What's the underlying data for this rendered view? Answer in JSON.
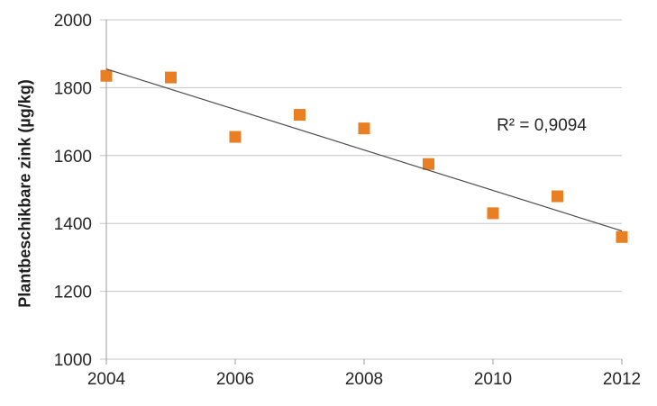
{
  "chart_data": {
    "type": "scatter",
    "title": "",
    "xlabel": "",
    "ylabel": "Plantbeschikbare zink (µg/kg)",
    "x": [
      2004,
      2005,
      2006,
      2007,
      2008,
      2009,
      2010,
      2011,
      2012
    ],
    "values": [
      1835,
      1830,
      1655,
      1720,
      1680,
      1575,
      1430,
      1480,
      1360
    ],
    "series_name": "Plantbeschikbare zink",
    "xlim": [
      2004,
      2012
    ],
    "ylim": [
      1000,
      2000
    ],
    "x_ticks": [
      2004,
      2006,
      2008,
      2010,
      2012
    ],
    "y_ticks": [
      1000,
      1200,
      1400,
      1600,
      1800,
      2000
    ],
    "grid": "horizontal",
    "legend": "none",
    "trendline": {
      "x_start": 2004,
      "y_start": 1855,
      "x_end": 2012,
      "y_end": 1378
    },
    "annotation": {
      "text": "R² = 0,9094",
      "r_squared": "0,9094"
    },
    "marker": {
      "shape": "square",
      "size": 13
    },
    "colors": {
      "marker": "#EA7E22",
      "trendline": "#4D4D4D",
      "gridline": "#C6C6C6",
      "axis": "#9C9C9C",
      "text": "#262626"
    }
  }
}
